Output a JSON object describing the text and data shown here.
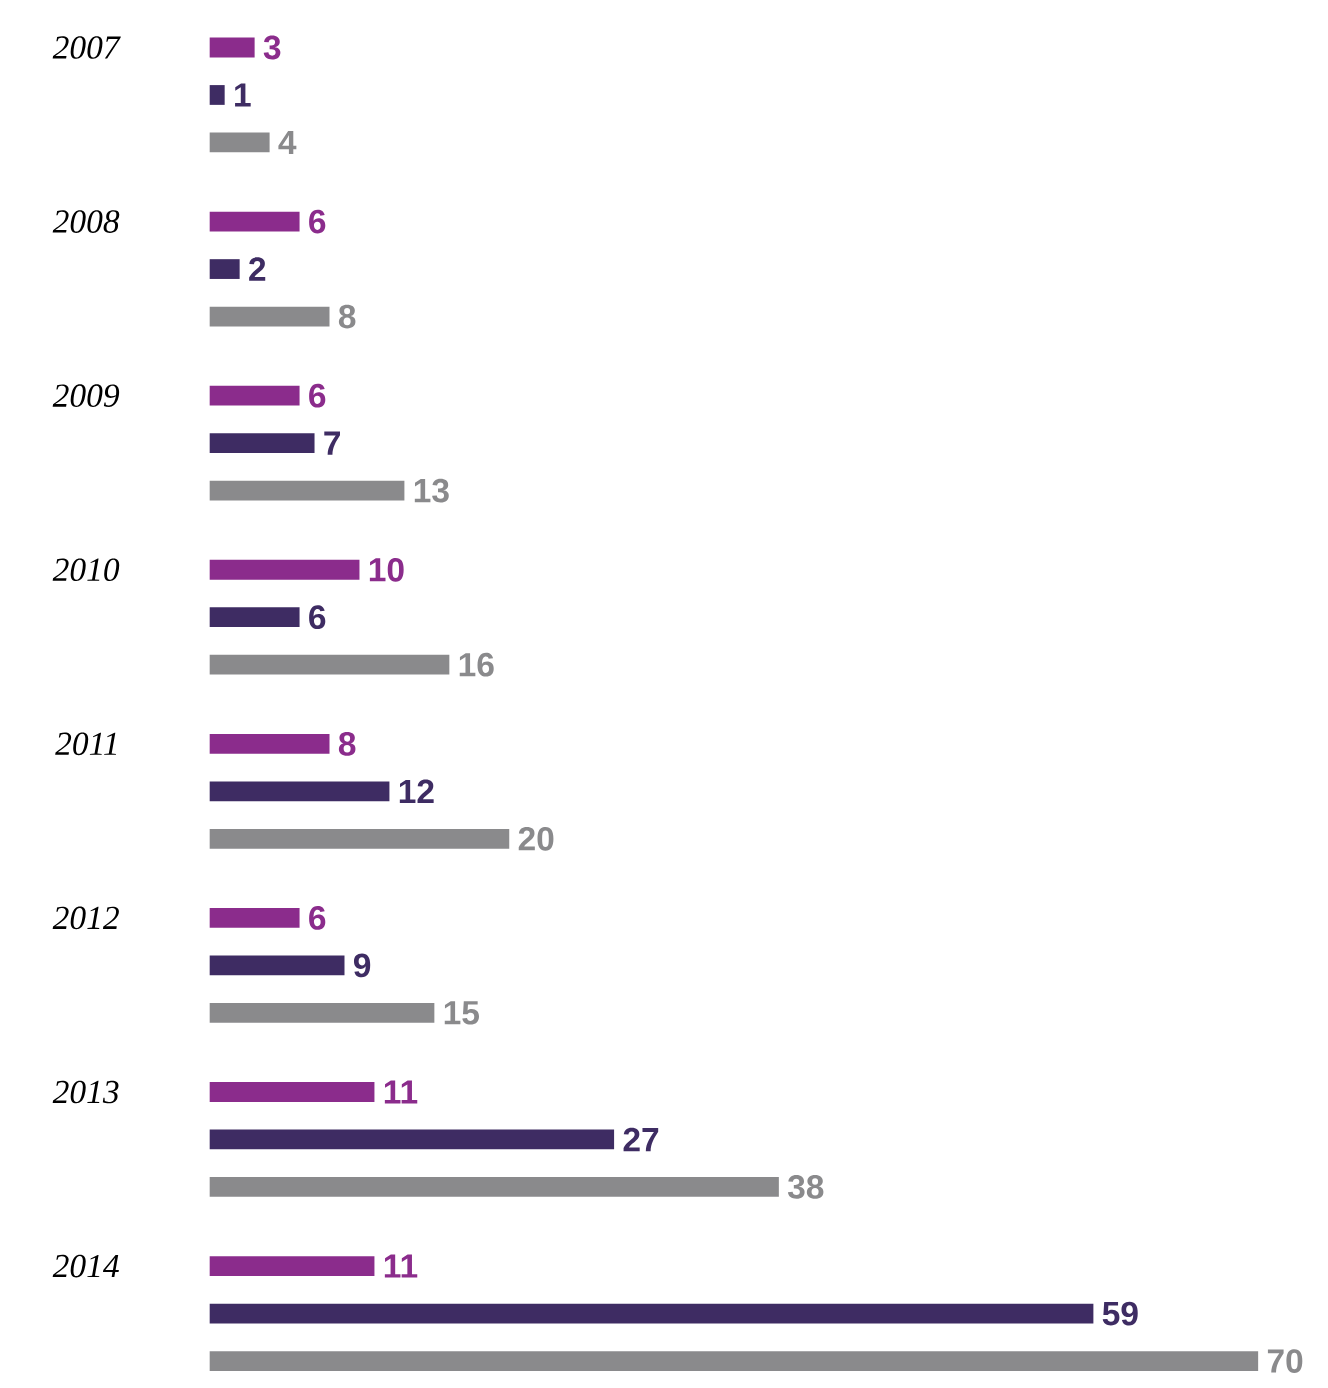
{
  "chart_data": {
    "type": "bar",
    "orientation": "horizontal",
    "data_labels": true,
    "tick_labels": "y",
    "categories": [
      "2007",
      "2008",
      "2009",
      "2010",
      "2011",
      "2012",
      "2013",
      "2014"
    ],
    "series": [
      {
        "color": "#8b2c8c",
        "values": [
          3,
          6,
          6,
          10,
          8,
          6,
          11,
          11
        ]
      },
      {
        "color": "#3e2c63",
        "values": [
          1,
          2,
          7,
          6,
          12,
          9,
          27,
          59
        ]
      },
      {
        "color": "#8a8a8c",
        "values": [
          4,
          8,
          13,
          16,
          20,
          15,
          38,
          70
        ]
      }
    ]
  }
}
